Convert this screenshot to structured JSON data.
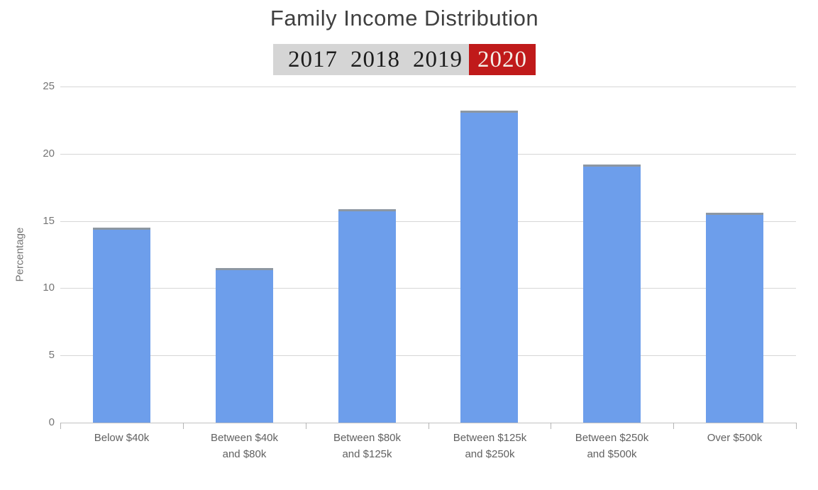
{
  "chart_data": {
    "type": "bar",
    "title": "Family Income Distribution",
    "ylabel": "Percentage",
    "xlabel": "",
    "categories": [
      "Below $40k",
      "Between $40k\nand $80k",
      "Between $80k\nand $125k",
      "Between $125k\nand $250k",
      "Between $250k\nand $500k",
      "Over $500k"
    ],
    "values": [
      14.5,
      11.5,
      15.9,
      23.2,
      19.2,
      15.6
    ],
    "ylim": [
      0,
      25
    ],
    "yticks": [
      0,
      5,
      10,
      15,
      20,
      25
    ],
    "grid": true,
    "legend": "none",
    "bar_color": "#6d9eeb"
  },
  "year_tabs": {
    "active": "2020",
    "items": [
      {
        "label": "2017"
      },
      {
        "label": "2018"
      },
      {
        "label": "2019"
      },
      {
        "label": "2020"
      }
    ]
  },
  "colors": {
    "bar": "#6d9eeb",
    "tab_strip_bg": "#d5d5d5",
    "active_tab_bg": "#c01a1a",
    "active_tab_text": "#f5efe8",
    "inactive_tab_text": "#1c1c1c",
    "gridline": "#d6d6d6",
    "axis_text": "#757575",
    "title_text": "#3f3f3f"
  }
}
